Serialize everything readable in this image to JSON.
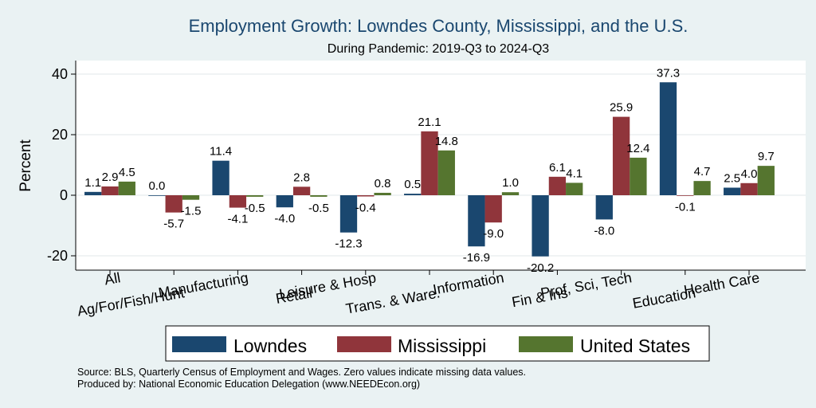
{
  "chart_data": {
    "type": "bar",
    "title": "Employment Growth: Lowndes County, Mississippi, and the U.S.",
    "subtitle": "During Pandemic: 2019-Q3 to 2024-Q3",
    "ylabel": "Percent",
    "xlabel": "",
    "ylim": [
      -25,
      45
    ],
    "yticks": [
      -20,
      0,
      20,
      40
    ],
    "categories": [
      "All",
      "Ag/For/Fish/Hunt",
      "Manufacturing",
      "Retail",
      "Leisure & Hosp",
      "Trans. & Ware.",
      "Information",
      "Fin & Ins",
      "Prof, Sci, Tech",
      "Education",
      "Health Care"
    ],
    "series": [
      {
        "name": "Lowndes",
        "color": "#1a476f",
        "values": [
          1.1,
          0.0,
          11.4,
          -4.0,
          -12.3,
          0.5,
          -16.9,
          -20.2,
          -8.0,
          37.3,
          2.5
        ],
        "labels": [
          "1.1",
          "0.0",
          "11.4",
          "-4.0",
          "-12.3",
          "0.5",
          "-16.9",
          "-20.2",
          "-8.0",
          "37.3",
          "2.5"
        ]
      },
      {
        "name": "Mississippi",
        "color": "#90353b",
        "values": [
          2.9,
          -5.7,
          -4.1,
          2.8,
          -0.4,
          21.1,
          -9.0,
          6.1,
          25.9,
          -0.1,
          4.0
        ],
        "labels": [
          "2.9",
          "-5.7",
          "-4.1",
          "2.8",
          "-0.4",
          "21.1",
          "-9.0",
          "6.1",
          "25.9",
          "-0.1",
          "4.0"
        ]
      },
      {
        "name": "United States",
        "color": "#55752f",
        "values": [
          4.5,
          -1.5,
          -0.5,
          -0.5,
          0.8,
          14.8,
          1.0,
          4.1,
          12.4,
          4.7,
          9.7
        ],
        "labels": [
          "4.5",
          "-1.5",
          "-0.5",
          "-0.5",
          "0.8",
          "14.8",
          "1.0",
          "4.1",
          "12.4",
          "4.7",
          "9.7"
        ]
      }
    ],
    "grid": true,
    "legend": "bottom"
  },
  "footer": {
    "source": "Source: BLS, Quarterly Census of Employment and Wages. Zero values indicate missing data values.",
    "produced_by": "Produced by: National Economic Education Delegation (www.NEEDEcon.org)"
  }
}
